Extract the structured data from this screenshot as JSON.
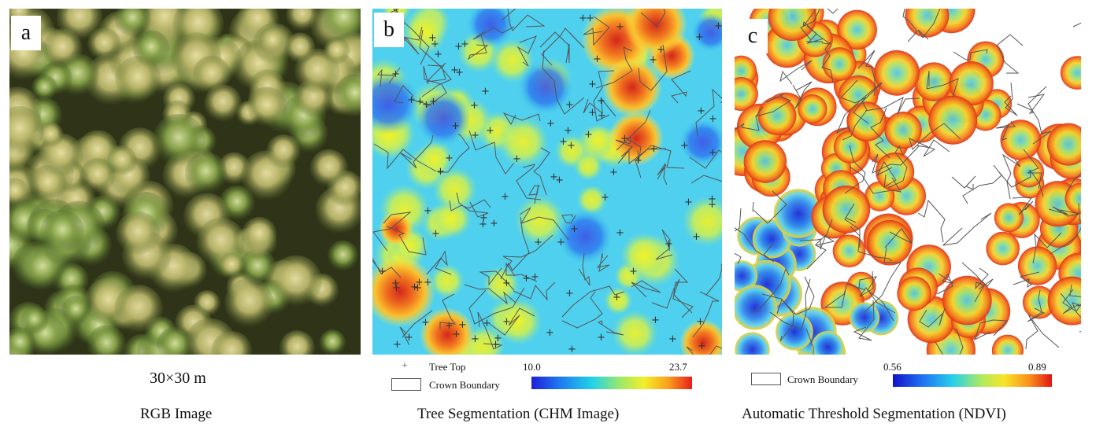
{
  "panels": [
    {
      "letter": "a",
      "caption": "RGB Image",
      "scale": "30×30 m"
    },
    {
      "letter": "b",
      "caption": "Tree Segmentation (CHM Image)",
      "legend": {
        "tree_top": "Tree Top",
        "crown_boundary": "Crown Boundary"
      },
      "colorbar": {
        "min": "10.0",
        "max": "23.7"
      }
    },
    {
      "letter": "c",
      "caption": "Automatic Threshold Segmentation (NDVI)",
      "legend": {
        "crown_boundary": "Crown Boundary"
      },
      "colorbar": {
        "min": "0.56",
        "max": "0.89"
      }
    }
  ],
  "symbols": {
    "tree_top_marker": "+"
  },
  "colors": {
    "chm_low": "#1e1ed8",
    "chm_high": "#e81e1e",
    "ndvi_low": "#1212c8",
    "ndvi_high": "#e01616"
  }
}
